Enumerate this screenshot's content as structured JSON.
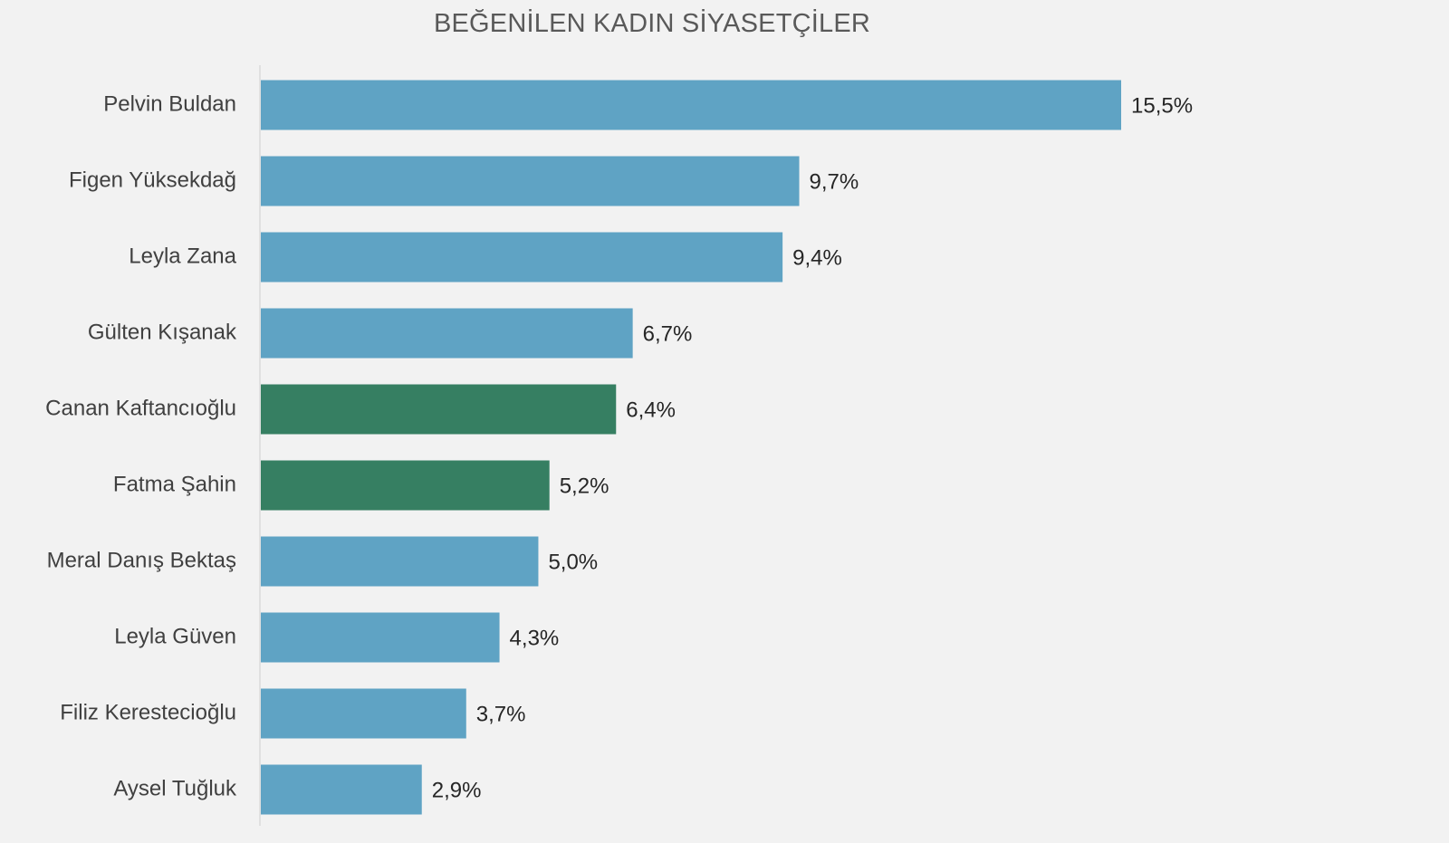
{
  "chart_data": {
    "type": "bar",
    "orientation": "horizontal",
    "title": "BEĞENİLEN KADIN SİYASETÇİLER",
    "categories": [
      "Pelvin Buldan",
      "Figen Yüksekdağ",
      "Leyla Zana",
      "Gülten Kışanak",
      "Canan Kaftancıoğlu",
      "Fatma Şahin",
      "Meral Danış Bektaş",
      "Leyla Güven",
      "Filiz Kerestecioğlu",
      "Aysel Tuğluk"
    ],
    "values": [
      15.5,
      9.7,
      9.4,
      6.7,
      6.4,
      5.2,
      5.0,
      4.3,
      3.7,
      2.9
    ],
    "value_labels": [
      "15,5%",
      "9,7%",
      "9,4%",
      "6,7%",
      "6,4%",
      "5,2%",
      "5,0%",
      "4,3%",
      "3,7%",
      "2,9%"
    ],
    "bar_colors": [
      "#5fa3c4",
      "#5fa3c4",
      "#5fa3c4",
      "#5fa3c4",
      "#367f62",
      "#367f62",
      "#5fa3c4",
      "#5fa3c4",
      "#5fa3c4",
      "#5fa3c4"
    ],
    "xlim": [
      0,
      15.5
    ],
    "grid": false,
    "legend": "none"
  }
}
